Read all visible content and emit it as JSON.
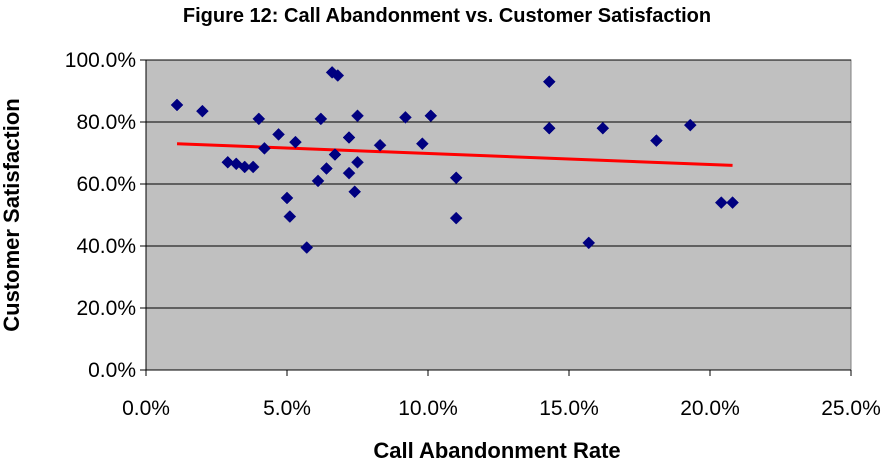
{
  "chart_data": {
    "type": "scatter",
    "title": "Figure 12: Call Abandonment vs. Customer Satisfaction",
    "xlabel": "Call Abandonment Rate",
    "ylabel": "Customer Satisfaction",
    "xlim": [
      0,
      25
    ],
    "ylim": [
      0,
      100
    ],
    "xticks": [
      0,
      5,
      10,
      15,
      20,
      25
    ],
    "yticks": [
      0,
      20,
      40,
      60,
      80,
      100
    ],
    "xtick_labels": [
      "0.0%",
      "5.0%",
      "10.0%",
      "15.0%",
      "20.0%",
      "25.0%"
    ],
    "ytick_labels": [
      "0.0%",
      "20.0%",
      "40.0%",
      "60.0%",
      "80.0%",
      "100.0%"
    ],
    "grid": "horizontal",
    "legend": "none",
    "plot_background": "#c0c0c0",
    "marker": "diamond",
    "marker_color": "#000080",
    "trendline_color": "#ff0000",
    "series": [
      {
        "points": [
          [
            1.1,
            85.5
          ],
          [
            2.0,
            83.5
          ],
          [
            2.9,
            67.0
          ],
          [
            3.2,
            66.5
          ],
          [
            3.5,
            65.5
          ],
          [
            3.8,
            65.5
          ],
          [
            4.0,
            81.0
          ],
          [
            4.2,
            71.5
          ],
          [
            4.7,
            76.0
          ],
          [
            5.0,
            55.5
          ],
          [
            5.1,
            49.5
          ],
          [
            5.3,
            73.5
          ],
          [
            5.7,
            39.5
          ],
          [
            6.1,
            61.0
          ],
          [
            6.2,
            81.0
          ],
          [
            6.4,
            65.0
          ],
          [
            6.6,
            96.0
          ],
          [
            6.7,
            69.5
          ],
          [
            6.8,
            95.0
          ],
          [
            7.2,
            75.0
          ],
          [
            7.2,
            63.5
          ],
          [
            7.4,
            57.5
          ],
          [
            7.5,
            67.0
          ],
          [
            7.5,
            82.0
          ],
          [
            8.3,
            72.5
          ],
          [
            9.2,
            81.5
          ],
          [
            9.8,
            73.0
          ],
          [
            10.1,
            82.0
          ],
          [
            11.0,
            62.0
          ],
          [
            11.0,
            49.0
          ],
          [
            14.3,
            93.0
          ],
          [
            14.3,
            78.0
          ],
          [
            15.7,
            41.0
          ],
          [
            16.2,
            78.0
          ],
          [
            18.1,
            74.0
          ],
          [
            19.3,
            79.0
          ],
          [
            20.4,
            54.0
          ],
          [
            20.8,
            54.0
          ]
        ]
      }
    ],
    "trendline": {
      "x": [
        1.1,
        20.8
      ],
      "y": [
        73.0,
        66.0
      ]
    }
  }
}
